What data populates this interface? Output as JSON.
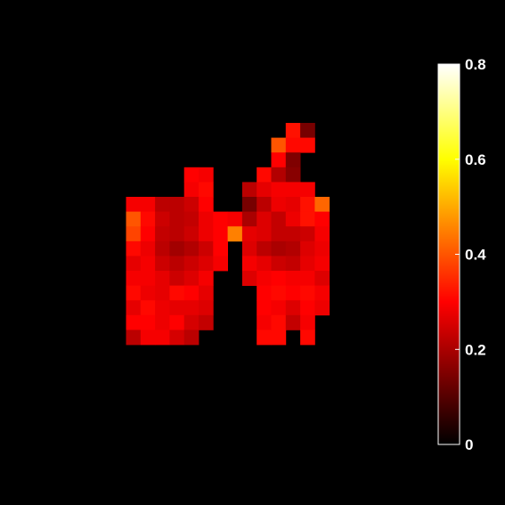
{
  "chart_data": {
    "type": "heatmap",
    "colormap": "hot",
    "background": "#000000",
    "grid": false,
    "legend": "colorbar-right",
    "clim": [
      0,
      0.8
    ],
    "colorbar_ticks": [
      {
        "value": 0,
        "label": "0"
      },
      {
        "value": 0.2,
        "label": "0.2"
      },
      {
        "value": 0.4,
        "label": "0.4"
      },
      {
        "value": 0.6,
        "label": "0.6"
      },
      {
        "value": 0.8,
        "label": "0.8"
      }
    ],
    "cells": [
      [
        null,
        null,
        null,
        null,
        null,
        null,
        null,
        null,
        null,
        null,
        null,
        0.32,
        0.14,
        null,
        null,
        null
      ],
      [
        null,
        null,
        null,
        null,
        null,
        null,
        null,
        null,
        null,
        null,
        0.4,
        0.31,
        0.31,
        null,
        null,
        null
      ],
      [
        null,
        null,
        null,
        null,
        null,
        null,
        null,
        null,
        null,
        null,
        0.3,
        0.15,
        null,
        null,
        null,
        null
      ],
      [
        null,
        null,
        null,
        null,
        0.3,
        0.29,
        null,
        null,
        null,
        0.31,
        0.21,
        0.16,
        null,
        null,
        null,
        null
      ],
      [
        null,
        null,
        null,
        null,
        0.29,
        0.31,
        null,
        null,
        0.22,
        0.27,
        0.29,
        0.29,
        0.29,
        null,
        null,
        null
      ],
      [
        0.29,
        0.29,
        0.22,
        0.22,
        0.24,
        0.3,
        null,
        null,
        0.14,
        0.22,
        0.28,
        0.27,
        0.32,
        0.42,
        null,
        null
      ],
      [
        0.4,
        0.31,
        0.24,
        0.22,
        0.23,
        0.28,
        0.3,
        0.29,
        0.2,
        0.26,
        0.23,
        0.28,
        0.32,
        0.3,
        null,
        null
      ],
      [
        0.38,
        0.3,
        0.23,
        0.22,
        0.24,
        0.28,
        0.3,
        0.45,
        0.27,
        0.26,
        0.23,
        0.23,
        0.24,
        0.29,
        null,
        null
      ],
      [
        0.31,
        0.28,
        0.22,
        0.19,
        0.21,
        0.24,
        0.3,
        null,
        0.26,
        0.22,
        0.2,
        0.21,
        0.26,
        0.28,
        null,
        null
      ],
      [
        0.27,
        0.29,
        0.24,
        0.22,
        0.24,
        0.26,
        0.29,
        null,
        0.29,
        0.27,
        0.24,
        0.23,
        0.27,
        0.29,
        null,
        null
      ],
      [
        0.29,
        0.29,
        0.27,
        0.24,
        0.26,
        0.29,
        null,
        null,
        0.26,
        0.29,
        0.3,
        0.29,
        0.29,
        0.26,
        null,
        null
      ],
      [
        0.31,
        0.28,
        0.27,
        0.31,
        0.3,
        0.27,
        null,
        null,
        null,
        0.3,
        0.31,
        0.3,
        0.31,
        0.29,
        null,
        null
      ],
      [
        0.27,
        0.31,
        0.28,
        0.27,
        0.27,
        0.26,
        null,
        null,
        null,
        0.3,
        0.29,
        0.26,
        0.3,
        0.28,
        null,
        null
      ],
      [
        0.3,
        0.3,
        0.28,
        0.3,
        0.25,
        0.23,
        null,
        null,
        null,
        0.29,
        0.31,
        0.23,
        0.29,
        null,
        null,
        null
      ],
      [
        0.22,
        0.29,
        0.29,
        0.25,
        0.22,
        null,
        null,
        null,
        null,
        0.31,
        0.31,
        null,
        0.31,
        null,
        null,
        null
      ]
    ]
  }
}
